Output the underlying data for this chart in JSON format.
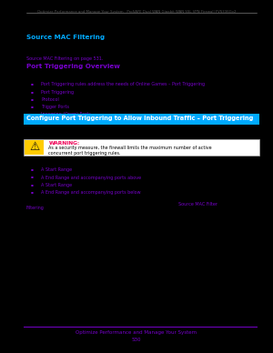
{
  "bg_color": "#000000",
  "page_bg": "#ffffff",
  "header_text": "Optimize Performance and Manage Your System   ProSAFE Dual WAN Gigabit WAN SSL VPN Firewall FVS336Gv2",
  "heading1_text": "Source MAC Filtering",
  "heading1_color": "#00aaff",
  "heading2_text": "Port Triggering Overview",
  "heading2_color": "#7700cc",
  "heading3_text": "Configure Port Triggering to Allow Inbound Traffic – Port Triggering",
  "heading3_bg": "#00aaff",
  "heading3_text_color": "#ffffff",
  "body_color": "#000000",
  "link_color": "#7700cc",
  "bullet_color": "#7700cc",
  "warning_border": "#aaaaaa",
  "warning_label": "WARNING:",
  "warning_label_color": "#ee0055",
  "warning_icon_color": "#ffcc00",
  "footer_line_color": "#7700cc",
  "footer_text": "Optimize Performance and Manage Your System",
  "footer_page": "530",
  "footer_color": "#7700cc"
}
